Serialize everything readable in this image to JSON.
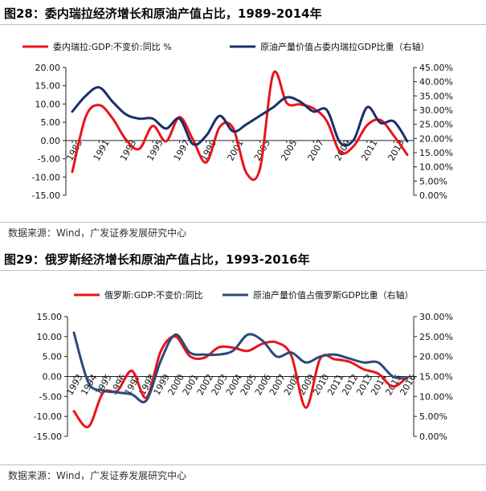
{
  "chart_data": [
    {
      "type": "line",
      "title": "图28：委内瑞拉经济增长和原油产值占比，1989-2014年",
      "source": "数据来源：Wind，广发证券发展研究中心",
      "legend_position": "top",
      "x": [
        1989,
        1990,
        1991,
        1992,
        1993,
        1994,
        1995,
        1996,
        1997,
        1998,
        1999,
        2000,
        2001,
        2002,
        2003,
        2004,
        2005,
        2006,
        2007,
        2008,
        2009,
        2010,
        2011,
        2012,
        2013,
        2014
      ],
      "x_tick_labels": [
        "1989",
        "1991",
        "1993",
        "1995",
        "1997",
        "1999",
        "2001",
        "2003",
        "2005",
        "2007",
        "2009",
        "2011",
        "2013"
      ],
      "left_axis": {
        "ticks": [
          "20.00",
          "15.00",
          "10.00",
          "5.00",
          "0.00",
          "-5.00",
          "-10.00",
          "-15.00"
        ],
        "range": [
          -15,
          20
        ]
      },
      "right_axis": {
        "ticks": [
          "45.00%",
          "40.00%",
          "35.00%",
          "30.00%",
          "25.00%",
          "20.00%",
          "15.00%",
          "10.00%",
          "5.00%",
          "0.00%"
        ],
        "range": [
          0,
          45
        ]
      },
      "series": [
        {
          "name": "委内瑞拉:GDP:不变价:同比 %",
          "axis": "left",
          "color": "#e8141b",
          "values": [
            -8.6,
            6.5,
            9.7,
            6.1,
            0.3,
            -2.3,
            4.0,
            -0.2,
            6.4,
            0.3,
            -6.0,
            3.7,
            3.4,
            -8.9,
            -7.8,
            18.3,
            10.3,
            9.9,
            8.8,
            5.3,
            -3.2,
            -1.5,
            4.2,
            5.6,
            1.3,
            -3.9
          ]
        },
        {
          "name": "原油产量价值占委内瑞拉GDP比重（右轴）",
          "axis": "right",
          "color": "#1a2f6b",
          "values": [
            29.5,
            35.0,
            38.0,
            33.0,
            28.5,
            27.0,
            27.0,
            23.5,
            27.0,
            18.0,
            21.0,
            28.0,
            22.5,
            25.0,
            28.0,
            31.0,
            34.5,
            33.0,
            29.5,
            30.0,
            18.5,
            19.5,
            31.0,
            25.5,
            26.0,
            19.0
          ]
        }
      ]
    },
    {
      "type": "line",
      "title": "图29：俄罗斯经济增长和原油产值占比，1993-2016年",
      "source": "数据来源：Wind，广发证券发展研究中心",
      "legend_position": "top",
      "x": [
        1993,
        1994,
        1995,
        1996,
        1997,
        1998,
        1999,
        2000,
        2001,
        2002,
        2003,
        2004,
        2005,
        2006,
        2007,
        2008,
        2009,
        2010,
        2011,
        2012,
        2013,
        2014,
        2015,
        2016
      ],
      "x_tick_labels": [
        "1993",
        "1994",
        "1995",
        "1996",
        "1997",
        "1998",
        "1999",
        "2000",
        "2001",
        "2002",
        "2003",
        "2004",
        "2005",
        "2006",
        "2007",
        "2008",
        "2009",
        "2010",
        "2011",
        "2012",
        "2013",
        "2014",
        "2015",
        "2016"
      ],
      "left_axis": {
        "ticks": [
          "15.00",
          "10.00",
          "5.00",
          "0.00",
          "-5.00",
          "-10.00",
          "-15.00"
        ],
        "range": [
          -15,
          15
        ]
      },
      "right_axis": {
        "ticks": [
          "30.00%",
          "25.00%",
          "20.00%",
          "15.00%",
          "10.00%",
          "5.00%",
          "0.00%"
        ],
        "range": [
          0,
          30
        ]
      },
      "series": [
        {
          "name": "俄罗斯:GDP:不变价:同比",
          "axis": "left",
          "color": "#e8141b",
          "values": [
            -8.7,
            -12.6,
            -4.1,
            -3.6,
            1.4,
            -5.3,
            6.4,
            10.0,
            5.1,
            4.7,
            7.3,
            7.2,
            6.4,
            8.2,
            8.5,
            5.2,
            -7.8,
            4.5,
            4.3,
            3.7,
            1.8,
            0.7,
            -2.5,
            -0.2
          ]
        },
        {
          "name": "原油产量价值占俄罗斯GDP比重（右轴）",
          "axis": "right",
          "color": "#2b4a7a",
          "values": [
            26.0,
            13.5,
            11.5,
            11.0,
            10.5,
            9.0,
            19.0,
            25.5,
            21.0,
            20.5,
            20.5,
            21.5,
            25.5,
            24.0,
            20.0,
            21.0,
            18.5,
            20.0,
            20.5,
            19.5,
            18.5,
            18.5,
            15.0,
            14.5
          ]
        }
      ]
    }
  ]
}
